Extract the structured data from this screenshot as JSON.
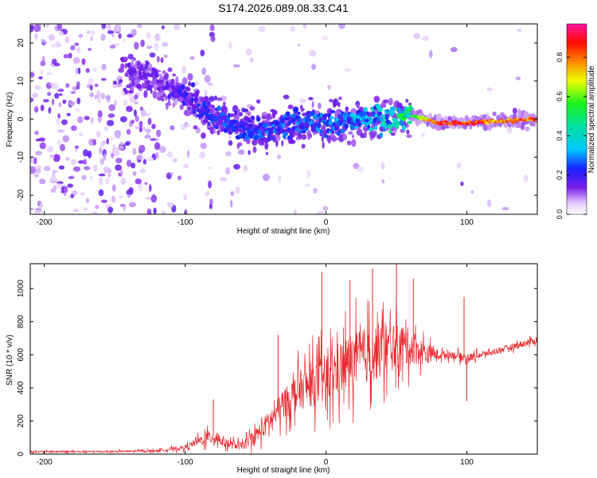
{
  "figure_title": "S174.2026.089.08.33.C41",
  "chart_data": [
    {
      "type": "heatmap",
      "name": "spectrogram",
      "xlabel": "Height of straight line (km)",
      "ylabel": "Frequency (Hz)",
      "xlim": [
        -210,
        150
      ],
      "ylim": [
        -25,
        25
      ],
      "xticks": [
        -200,
        -100,
        0,
        100
      ],
      "yticks": [
        -20,
        -10,
        0,
        10,
        20
      ],
      "colorbar": {
        "label": "Normalized spectral amplitude",
        "range": [
          0.0,
          0.97
        ],
        "ticks": [
          0.0,
          0.2,
          0.4,
          0.6,
          0.8
        ],
        "colormap": "rainbow (white-violet-blue-cyan-green-yellow-red-magenta)"
      },
      "ridge": {
        "x": [
          -140,
          -120,
          -100,
          -80,
          -60,
          -40,
          -20,
          0,
          20,
          40,
          60,
          80,
          100,
          120,
          150
        ],
        "freq": [
          12,
          10,
          6,
          1,
          -2,
          -3,
          -1,
          -1,
          0,
          0,
          1,
          -1,
          -1,
          -0.5,
          0
        ],
        "amplitude": [
          0.15,
          0.15,
          0.2,
          0.25,
          0.25,
          0.28,
          0.28,
          0.3,
          0.33,
          0.38,
          0.55,
          0.9,
          0.92,
          0.78,
          0.88
        ]
      }
    },
    {
      "type": "line",
      "name": "snr",
      "xlabel": "Height of straight line (km)",
      "ylabel": "SNR (10 * v/v)",
      "xlim": [
        -210,
        150
      ],
      "ylim": [
        0,
        1150
      ],
      "xticks": [
        -200,
        -100,
        0,
        100
      ],
      "yticks": [
        0,
        200,
        400,
        600,
        800,
        1000
      ],
      "color": "#e8262a",
      "envelope": {
        "x": [
          -210,
          -150,
          -120,
          -100,
          -90,
          -80,
          -70,
          -60,
          -50,
          -40,
          -30,
          -20,
          -10,
          0,
          10,
          20,
          30,
          40,
          50,
          60,
          70,
          80,
          90,
          100,
          110,
          120,
          150
        ],
        "mean": [
          15,
          15,
          20,
          40,
          80,
          110,
          60,
          50,
          110,
          200,
          300,
          380,
          420,
          450,
          520,
          570,
          600,
          630,
          650,
          650,
          610,
          600,
          600,
          580,
          600,
          620,
          690
        ],
        "spread": [
          12,
          12,
          15,
          30,
          60,
          110,
          60,
          50,
          110,
          150,
          200,
          250,
          300,
          350,
          380,
          380,
          380,
          380,
          300,
          250,
          150,
          60,
          50,
          60,
          40,
          40,
          50
        ]
      },
      "spikes": [
        {
          "x": -80,
          "y": 330
        },
        {
          "x": -34,
          "y": 720
        },
        {
          "x": -3,
          "y": 1100
        },
        {
          "x": 17,
          "y": 1050
        },
        {
          "x": 33,
          "y": 1120
        },
        {
          "x": 50,
          "y": 1150
        },
        {
          "x": 62,
          "y": 1060
        },
        {
          "x": 98,
          "y": 950
        },
        {
          "x": 100,
          "y": 320
        }
      ]
    }
  ]
}
